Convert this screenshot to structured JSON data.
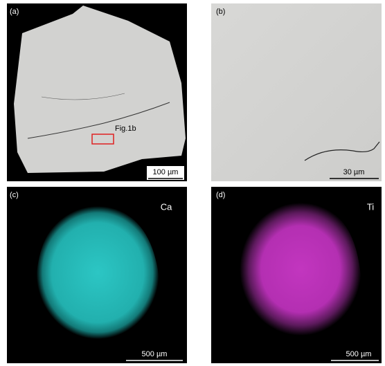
{
  "panels": [
    {
      "label": "(a)",
      "annotation": "Fig.1b",
      "scale_bar": "100 µm"
    },
    {
      "label": "(b)",
      "scale_bar": "30 µm"
    },
    {
      "label": "(c)",
      "element": "Ca",
      "scale_bar": "500 µm"
    },
    {
      "label": "(d)",
      "element": "Ti",
      "scale_bar": "500 µm"
    }
  ]
}
